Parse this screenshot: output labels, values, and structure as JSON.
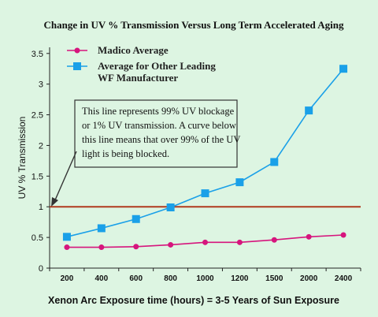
{
  "chart_data": {
    "type": "line",
    "title": "Change in UV % Transmission Versus Long Term Accelerated Aging",
    "xlabel": "Xenon Arc Exposure time (hours) = 3-5 Years of Sun Exposure",
    "ylabel": "UV % Transmission",
    "categories": [
      "200",
      "400",
      "600",
      "800",
      "1000",
      "1200",
      "1500",
      "2000",
      "2400"
    ],
    "ylim": [
      0,
      3.6
    ],
    "yticks": [
      0,
      0.5,
      1,
      1.5,
      2,
      2.5,
      3,
      3.5
    ],
    "ytick_labels": [
      "0",
      "0.5",
      "1",
      "1.5",
      "2",
      "2.5",
      "3",
      "3.5"
    ],
    "grid": false,
    "legend_position": "top-left",
    "series": [
      {
        "name": "Madico Average",
        "values": [
          0.34,
          0.34,
          0.35,
          0.38,
          0.42,
          0.42,
          0.46,
          0.51,
          0.54
        ],
        "color": "#d6157d",
        "marker": "circle"
      },
      {
        "name": "Average for Other Leading WF Manufacturer",
        "legend_lines": [
          "Average for Other Leading",
          "WF Manufacturer"
        ],
        "values": [
          0.51,
          0.65,
          0.8,
          0.99,
          1.22,
          1.4,
          1.73,
          2.57,
          3.25
        ],
        "color": "#1aa0e8",
        "marker": "square"
      }
    ],
    "reference_line": {
      "value": 1,
      "color": "#b03a1e"
    },
    "annotation": {
      "lines": [
        "This line represents 99% UV blockage",
        "or 1% UV transmission. A curve below",
        "this line means that over 99% of the UV",
        "light is being blocked."
      ]
    }
  }
}
